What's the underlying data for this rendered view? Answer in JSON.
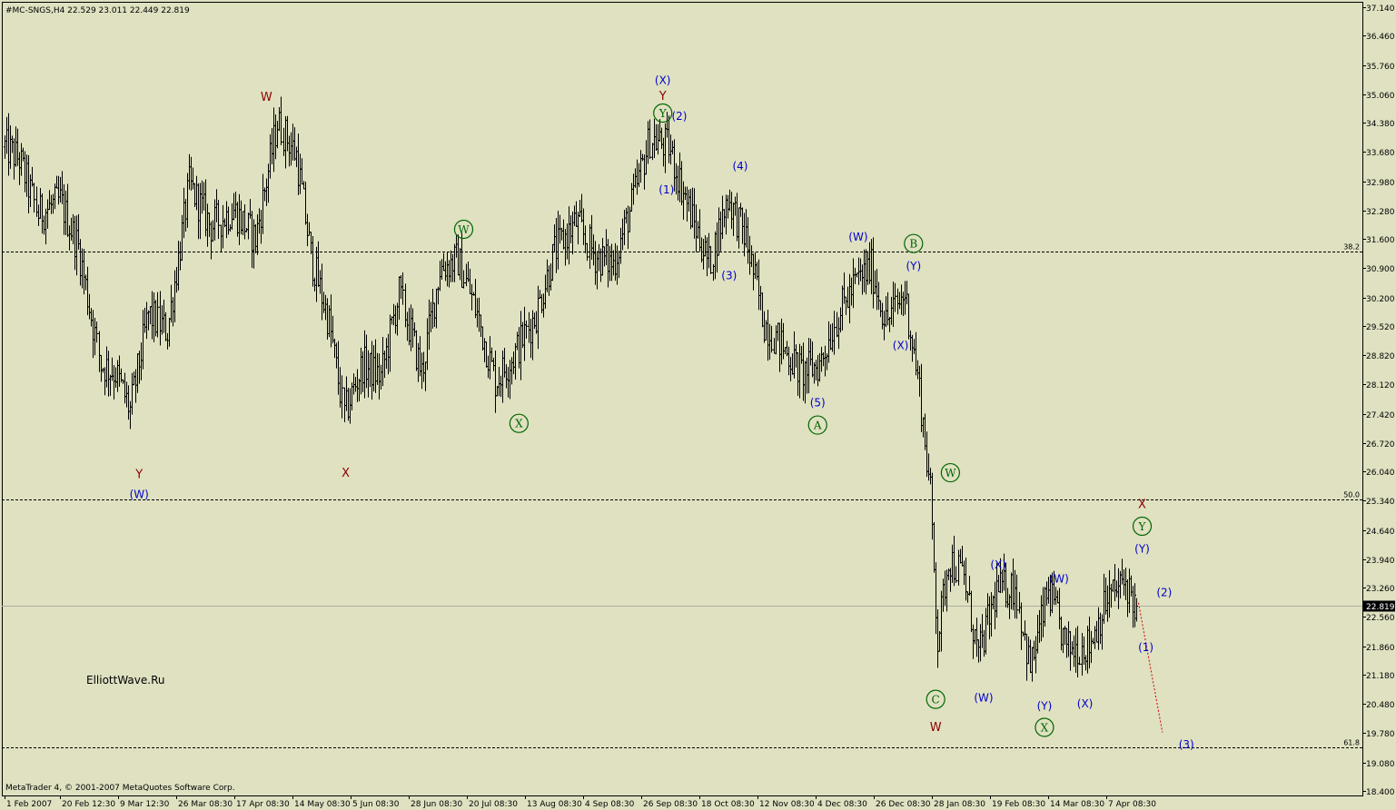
{
  "header": {
    "symbol_line": "#MC-SNGS,H4  22.529 23.011 22.449 22.819"
  },
  "footer": {
    "copyright": "MetaTrader 4, © 2001-2007 MetaQuotes Software Corp."
  },
  "watermark": "ElliottWave.Ru",
  "colors": {
    "background": "#dfe1c1",
    "bars": "#000000",
    "label_blue": "#0000cc",
    "label_red": "#8b0000",
    "label_green": "#006400",
    "fib_line": "#000000",
    "projection": "#cc0000",
    "price_tag_bg": "#000000",
    "price_tag_text": "#ffffff"
  },
  "chart_data": {
    "type": "ohlc",
    "timeframe": "H4",
    "symbol": "#MC-SNGS",
    "ylim": [
      18.4,
      37.14
    ],
    "y_ticks": [
      "37.140",
      "36.460",
      "35.760",
      "35.060",
      "34.380",
      "33.680",
      "32.980",
      "32.280",
      "31.600",
      "30.900",
      "30.200",
      "29.520",
      "28.820",
      "28.120",
      "27.420",
      "26.720",
      "26.040",
      "25.340",
      "24.640",
      "23.940",
      "23.260",
      "22.560",
      "21.860",
      "21.180",
      "20.480",
      "19.780",
      "19.080",
      "18.400"
    ],
    "x_ticks": [
      "1 Feb 2007",
      "20 Feb 12:30",
      "9 Mar 12:30",
      "26 Mar 08:30",
      "17 Apr 08:30",
      "14 May 08:30",
      "5 Jun 08:30",
      "28 Jun 08:30",
      "20 Jul 08:30",
      "13 Aug 08:30",
      "4 Sep 08:30",
      "26 Sep 08:30",
      "18 Oct 08:30",
      "12 Nov 08:30",
      "4 Dec 08:30",
      "26 Dec 08:30",
      "28 Jan 08:30",
      "19 Feb 08:30",
      "14 Mar 08:30",
      "7 Apr 08:30"
    ],
    "current_price": "22.819",
    "last_bar": {
      "open": 22.529,
      "high": 23.011,
      "low": 22.449,
      "close": 22.819
    },
    "fib_levels": [
      {
        "label": "38.2",
        "price": 31.29
      },
      {
        "label": "50.0",
        "price": 25.37
      },
      {
        "label": "61.8",
        "price": 19.45
      }
    ],
    "price_path": [
      {
        "bar": 0,
        "price": 33.8
      },
      {
        "bar": 8,
        "price": 33.5
      },
      {
        "bar": 18,
        "price": 32.2
      },
      {
        "bar": 30,
        "price": 32.5
      },
      {
        "bar": 40,
        "price": 31.4
      },
      {
        "bar": 52,
        "price": 28.6
      },
      {
        "bar": 60,
        "price": 28.4
      },
      {
        "bar": 68,
        "price": 27.5
      },
      {
        "bar": 78,
        "price": 29.8
      },
      {
        "bar": 88,
        "price": 29.4
      },
      {
        "bar": 100,
        "price": 32.9
      },
      {
        "bar": 112,
        "price": 31.9
      },
      {
        "bar": 124,
        "price": 32.3
      },
      {
        "bar": 136,
        "price": 31.6
      },
      {
        "bar": 148,
        "price": 34.4
      },
      {
        "bar": 158,
        "price": 33.6
      },
      {
        "bar": 166,
        "price": 31.2
      },
      {
        "bar": 176,
        "price": 29.6
      },
      {
        "bar": 184,
        "price": 27.4
      },
      {
        "bar": 194,
        "price": 28.6
      },
      {
        "bar": 204,
        "price": 28.3
      },
      {
        "bar": 214,
        "price": 30.3
      },
      {
        "bar": 226,
        "price": 28.4
      },
      {
        "bar": 236,
        "price": 30.9
      },
      {
        "bar": 246,
        "price": 31.1
      },
      {
        "bar": 256,
        "price": 29.8
      },
      {
        "bar": 266,
        "price": 28.2
      },
      {
        "bar": 276,
        "price": 28.8
      },
      {
        "bar": 288,
        "price": 29.8
      },
      {
        "bar": 298,
        "price": 31.3
      },
      {
        "bar": 310,
        "price": 32.0
      },
      {
        "bar": 320,
        "price": 31.2
      },
      {
        "bar": 330,
        "price": 31.0
      },
      {
        "bar": 340,
        "price": 32.4
      },
      {
        "bar": 350,
        "price": 34.0
      },
      {
        "bar": 360,
        "price": 33.8
      },
      {
        "bar": 372,
        "price": 32.2
      },
      {
        "bar": 382,
        "price": 31.0
      },
      {
        "bar": 392,
        "price": 32.6
      },
      {
        "bar": 402,
        "price": 31.6
      },
      {
        "bar": 412,
        "price": 29.6
      },
      {
        "bar": 422,
        "price": 29.0
      },
      {
        "bar": 432,
        "price": 28.4
      },
      {
        "bar": 442,
        "price": 28.6
      },
      {
        "bar": 452,
        "price": 29.8
      },
      {
        "bar": 462,
        "price": 30.6
      },
      {
        "bar": 470,
        "price": 30.9
      },
      {
        "bar": 478,
        "price": 29.6
      },
      {
        "bar": 488,
        "price": 30.3
      },
      {
        "bar": 496,
        "price": 28.0
      },
      {
        "bar": 502,
        "price": 25.5
      },
      {
        "bar": 506,
        "price": 22.0
      },
      {
        "bar": 512,
        "price": 24.0
      },
      {
        "bar": 520,
        "price": 23.5
      },
      {
        "bar": 528,
        "price": 21.6
      },
      {
        "bar": 538,
        "price": 23.2
      },
      {
        "bar": 548,
        "price": 23.3
      },
      {
        "bar": 556,
        "price": 21.3
      },
      {
        "bar": 566,
        "price": 23.2
      },
      {
        "bar": 576,
        "price": 21.8
      },
      {
        "bar": 588,
        "price": 21.9
      },
      {
        "bar": 598,
        "price": 23.0
      },
      {
        "bar": 608,
        "price": 23.4
      },
      {
        "bar": 614,
        "price": 22.8
      }
    ],
    "projection": [
      {
        "bar": 615,
        "price": 22.9
      },
      {
        "bar": 628,
        "price": 19.8
      }
    ],
    "annotations": [
      {
        "text": "W",
        "bar": 142,
        "price": 35.0,
        "color": "red",
        "circle": false
      },
      {
        "text": "Y",
        "bar": 73,
        "price": 25.98,
        "color": "red",
        "circle": false
      },
      {
        "text": "(W)",
        "bar": 73,
        "price": 25.5,
        "color": "blue",
        "circle": false
      },
      {
        "text": "X",
        "bar": 185,
        "price": 26.01,
        "color": "red",
        "circle": false
      },
      {
        "text": "W",
        "bar": 249,
        "price": 31.83,
        "color": "green",
        "circle": true
      },
      {
        "text": "X",
        "bar": 279,
        "price": 27.19,
        "color": "green",
        "circle": true
      },
      {
        "text": "(X)",
        "bar": 357,
        "price": 35.4,
        "color": "blue",
        "circle": false
      },
      {
        "text": "Y",
        "bar": 357,
        "price": 35.02,
        "color": "red",
        "circle": false
      },
      {
        "text": "Y",
        "bar": 357,
        "price": 34.61,
        "color": "green",
        "circle": true
      },
      {
        "text": "(2)",
        "bar": 366,
        "price": 34.54,
        "color": "blue",
        "circle": false
      },
      {
        "text": "(1)",
        "bar": 359,
        "price": 32.79,
        "color": "blue",
        "circle": false
      },
      {
        "text": "(4)",
        "bar": 399,
        "price": 33.35,
        "color": "blue",
        "circle": false
      },
      {
        "text": "(3)",
        "bar": 393,
        "price": 30.73,
        "color": "blue",
        "circle": false
      },
      {
        "text": "(5)",
        "bar": 441,
        "price": 27.69,
        "color": "blue",
        "circle": false
      },
      {
        "text": "A",
        "bar": 441,
        "price": 27.15,
        "color": "green",
        "circle": true
      },
      {
        "text": "(W)",
        "bar": 463,
        "price": 31.66,
        "color": "blue",
        "circle": false
      },
      {
        "text": "B",
        "bar": 493,
        "price": 31.49,
        "color": "green",
        "circle": true
      },
      {
        "text": "(Y)",
        "bar": 493,
        "price": 30.96,
        "color": "blue",
        "circle": false
      },
      {
        "text": "(X)",
        "bar": 486,
        "price": 29.06,
        "color": "blue",
        "circle": false
      },
      {
        "text": "W",
        "bar": 513,
        "price": 26.01,
        "color": "green",
        "circle": true
      },
      {
        "text": "C",
        "bar": 505,
        "price": 20.59,
        "color": "green",
        "circle": true
      },
      {
        "text": "W",
        "bar": 505,
        "price": 19.93,
        "color": "red",
        "circle": false
      },
      {
        "text": "(W)",
        "bar": 531,
        "price": 20.64,
        "color": "blue",
        "circle": false
      },
      {
        "text": "(X)",
        "bar": 539,
        "price": 23.82,
        "color": "blue",
        "circle": false
      },
      {
        "text": "(Y)",
        "bar": 564,
        "price": 20.44,
        "color": "blue",
        "circle": false
      },
      {
        "text": "X",
        "bar": 564,
        "price": 19.92,
        "color": "green",
        "circle": true
      },
      {
        "text": "(W)",
        "bar": 572,
        "price": 23.48,
        "color": "blue",
        "circle": false
      },
      {
        "text": "(X)",
        "bar": 586,
        "price": 20.5,
        "color": "blue",
        "circle": false
      },
      {
        "text": "X",
        "bar": 617,
        "price": 25.26,
        "color": "red",
        "circle": false
      },
      {
        "text": "Y",
        "bar": 617,
        "price": 24.73,
        "color": "green",
        "circle": true
      },
      {
        "text": "(Y)",
        "bar": 617,
        "price": 24.2,
        "color": "blue",
        "circle": false
      },
      {
        "text": "(2)",
        "bar": 629,
        "price": 23.16,
        "color": "blue",
        "circle": false
      },
      {
        "text": "(1)",
        "bar": 619,
        "price": 21.84,
        "color": "blue",
        "circle": false
      },
      {
        "text": "(3)",
        "bar": 641,
        "price": 19.52,
        "color": "blue",
        "circle": false
      }
    ]
  }
}
